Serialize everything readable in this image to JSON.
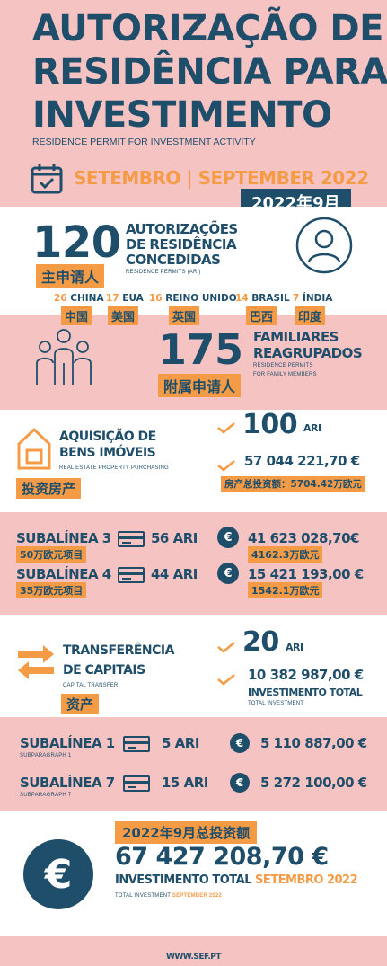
{
  "header": {
    "title_line1": "AUTORIZAÇÃO DE",
    "title_line2": "RESIDÊNCIA PARA",
    "title_line3": "INVESTIMENTO",
    "subtitle": "RESIDENCE PERMIT FOR INVESTMENT ACTIVITY",
    "date_label": "SETEMBRO | SEPTEMBER 2022",
    "date_cn": "2022年9月"
  },
  "permits": {
    "count": "120",
    "label_line1": "AUTORIZAÇÕES",
    "label_line2": "DE RESIDÊNCIA",
    "label_line3": "CONCEDIDAS",
    "label_en": "RESIDENCE PERMITS (ARI)",
    "cn_tag": "主申请人",
    "countries": [
      {
        "num": "26",
        "name": "CHINA",
        "cn": "中国"
      },
      {
        "num": "17",
        "name": "EUA",
        "cn": "美国"
      },
      {
        "num": "16",
        "name": "REINO UNIDO",
        "cn": "英国"
      },
      {
        "num": "14",
        "name": "BRASIL",
        "cn": "巴西"
      },
      {
        "num": "7",
        "name": "ÍNDIA",
        "cn": "印度"
      }
    ]
  },
  "family": {
    "count": "175",
    "label_line1": "FAMILIARES",
    "label_line2": "REAGRUPADOS",
    "label_en1": "RESIDENCE PERMITS",
    "label_en2": "FOR FAMILY MEMBERS",
    "cn_tag": "附属申请人"
  },
  "real_estate": {
    "title_line1": "AQUISIÇÃO DE",
    "title_line2": "BENS IMÓVEIS",
    "title_en": "REAL ESTATE PROPERTY PURCHASING",
    "cn_tag": "投资房产",
    "ari_count": "100",
    "ari_label": "ARI",
    "amount": "57 044 221,70 €",
    "amount_cn": "房产总投资额：5704.42万欧元"
  },
  "subalineas_a": [
    {
      "label": "SUBALÍNEA 3",
      "cn": "50万欧元项目",
      "ari": "56 ARI",
      "amount": "41 623 028,70€",
      "amount_cn": "4162.3万欧元"
    },
    {
      "label": "SUBALÍNEA 4",
      "cn": "35万欧元项目",
      "ari": "44 ARI",
      "amount": "15 421 193,00 €",
      "amount_cn": "1542.1万欧元"
    }
  ],
  "capital": {
    "title_line1": "TRANSFERÊNCIA",
    "title_line2": "DE CAPITAIS",
    "title_en": "CAPITAL TRANSFER",
    "cn_tag": "资产",
    "ari_count": "20",
    "ari_label": "ARI",
    "amount": "10 382 987,00 €",
    "invest_label": "INVESTIMENTO TOTAL",
    "invest_en": "TOTAL INVESTMENT"
  },
  "subalineas_b": [
    {
      "label": "SUBALÍNEA 1",
      "sub": "SUBPARAGRAPH 1",
      "ari": "5 ARI",
      "amount": "5 110 887,00 €"
    },
    {
      "label": "SUBALÍNEA 7",
      "sub": "SUBPARAGRAPH 7",
      "ari": "15 ARI",
      "amount": "5 272 100,00 €"
    }
  ],
  "total": {
    "cn_tag": "2022年9月总投资额",
    "amount": "67 427 208,70 €",
    "label": "INVESTIMENTO TOTAL",
    "label_month": "SETEMBRO 2022",
    "label_en": "TOTAL INVESTMENT",
    "label_en_month": "SEPTEMBER 2022"
  },
  "footer": {
    "url": "WWW.SEF.PT"
  },
  "colors": {
    "navy": "#1f4e6b",
    "orange": "#f59b45",
    "pink": "#f6c3c3",
    "white": "#ffffff"
  }
}
